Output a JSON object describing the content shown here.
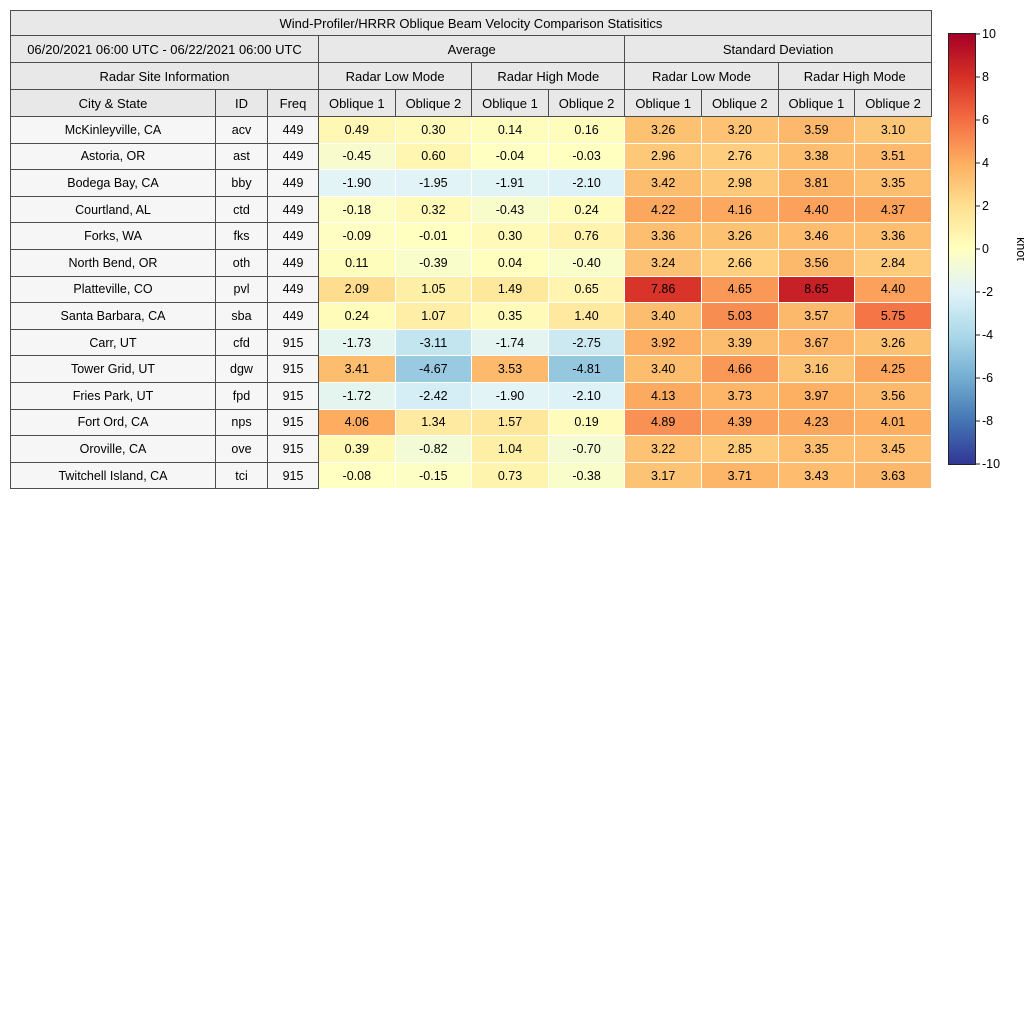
{
  "title": "Wind-Profiler/HRRR Oblique Beam Velocity Comparison Statisitics",
  "header": {
    "date_range": "06/20/2021 06:00 UTC - 06/22/2021 06:00 UTC",
    "group_average": "Average",
    "group_std": "Standard Deviation",
    "site_info": "Radar Site Information",
    "mode_low": "Radar Low Mode",
    "mode_high": "Radar High Mode",
    "col_city": "City & State",
    "col_id": "ID",
    "col_freq": "Freq",
    "col_oblique1": "Oblique 1",
    "col_oblique2": "Oblique 2"
  },
  "colorbar": {
    "label": "knot",
    "min": -10,
    "max": 10,
    "ticks": [
      10,
      8,
      6,
      4,
      2,
      0,
      -2,
      -4,
      -6,
      -8,
      -10
    ],
    "anchors": [
      {
        "value": -10,
        "color": "#313695"
      },
      {
        "value": -8,
        "color": "#4575b4"
      },
      {
        "value": -6,
        "color": "#74add1"
      },
      {
        "value": -4,
        "color": "#abd9e9"
      },
      {
        "value": -2,
        "color": "#e0f3f8"
      },
      {
        "value": 0,
        "color": "#ffffbf"
      },
      {
        "value": 2,
        "color": "#fee090"
      },
      {
        "value": 4,
        "color": "#fdae61"
      },
      {
        "value": 6,
        "color": "#f46d43"
      },
      {
        "value": 8,
        "color": "#d73027"
      },
      {
        "value": 10,
        "color": "#a50026"
      }
    ]
  },
  "chart_data": {
    "type": "heatmap",
    "title": "Wind-Profiler/HRRR Oblique Beam Velocity Comparison Statisitics",
    "unit": "knot",
    "value_range": [
      -10,
      10
    ],
    "columns": [
      "Average Radar Low Mode Oblique 1",
      "Average Radar Low Mode Oblique 2",
      "Average Radar High Mode Oblique 1",
      "Average Radar High Mode Oblique 2",
      "Standard Deviation Radar Low Mode Oblique 1",
      "Standard Deviation Radar Low Mode Oblique 2",
      "Standard Deviation Radar High Mode Oblique 1",
      "Standard Deviation Radar High Mode Oblique 2"
    ],
    "rows": [
      {
        "city": "McKinleyville, CA",
        "id": "acv",
        "freq": "449",
        "values": [
          0.49,
          0.3,
          0.14,
          0.16,
          3.26,
          3.2,
          3.59,
          3.1
        ]
      },
      {
        "city": "Astoria, OR",
        "id": "ast",
        "freq": "449",
        "values": [
          -0.45,
          0.6,
          -0.04,
          -0.03,
          2.96,
          2.76,
          3.38,
          3.51
        ]
      },
      {
        "city": "Bodega Bay, CA",
        "id": "bby",
        "freq": "449",
        "values": [
          -1.9,
          -1.95,
          -1.91,
          -2.1,
          3.42,
          2.98,
          3.81,
          3.35
        ]
      },
      {
        "city": "Courtland, AL",
        "id": "ctd",
        "freq": "449",
        "values": [
          -0.18,
          0.32,
          -0.43,
          0.24,
          4.22,
          4.16,
          4.4,
          4.37
        ]
      },
      {
        "city": "Forks, WA",
        "id": "fks",
        "freq": "449",
        "values": [
          -0.09,
          -0.01,
          0.3,
          0.76,
          3.36,
          3.26,
          3.46,
          3.36
        ]
      },
      {
        "city": "North Bend, OR",
        "id": "oth",
        "freq": "449",
        "values": [
          0.11,
          -0.39,
          0.04,
          -0.4,
          3.24,
          2.66,
          3.56,
          2.84
        ]
      },
      {
        "city": "Platteville, CO",
        "id": "pvl",
        "freq": "449",
        "values": [
          2.09,
          1.05,
          1.49,
          0.65,
          7.86,
          4.65,
          8.65,
          4.4
        ]
      },
      {
        "city": "Santa Barbara, CA",
        "id": "sba",
        "freq": "449",
        "values": [
          0.24,
          1.07,
          0.35,
          1.4,
          3.4,
          5.03,
          3.57,
          5.75
        ]
      },
      {
        "city": "Carr, UT",
        "id": "cfd",
        "freq": "915",
        "values": [
          -1.73,
          -3.11,
          -1.74,
          -2.75,
          3.92,
          3.39,
          3.67,
          3.26
        ]
      },
      {
        "city": "Tower Grid, UT",
        "id": "dgw",
        "freq": "915",
        "values": [
          3.41,
          -4.67,
          3.53,
          -4.81,
          3.4,
          4.66,
          3.16,
          4.25
        ]
      },
      {
        "city": "Fries Park, UT",
        "id": "fpd",
        "freq": "915",
        "values": [
          -1.72,
          -2.42,
          -1.9,
          -2.1,
          4.13,
          3.73,
          3.97,
          3.56
        ]
      },
      {
        "city": "Fort Ord, CA",
        "id": "nps",
        "freq": "915",
        "values": [
          4.06,
          1.34,
          1.57,
          0.19,
          4.89,
          4.39,
          4.23,
          4.01
        ]
      },
      {
        "city": "Oroville, CA",
        "id": "ove",
        "freq": "915",
        "values": [
          0.39,
          -0.82,
          1.04,
          -0.7,
          3.22,
          2.85,
          3.35,
          3.45
        ]
      },
      {
        "city": "Twitchell Island, CA",
        "id": "tci",
        "freq": "915",
        "values": [
          -0.08,
          -0.15,
          0.73,
          -0.38,
          3.17,
          3.71,
          3.43,
          3.63
        ]
      }
    ]
  }
}
